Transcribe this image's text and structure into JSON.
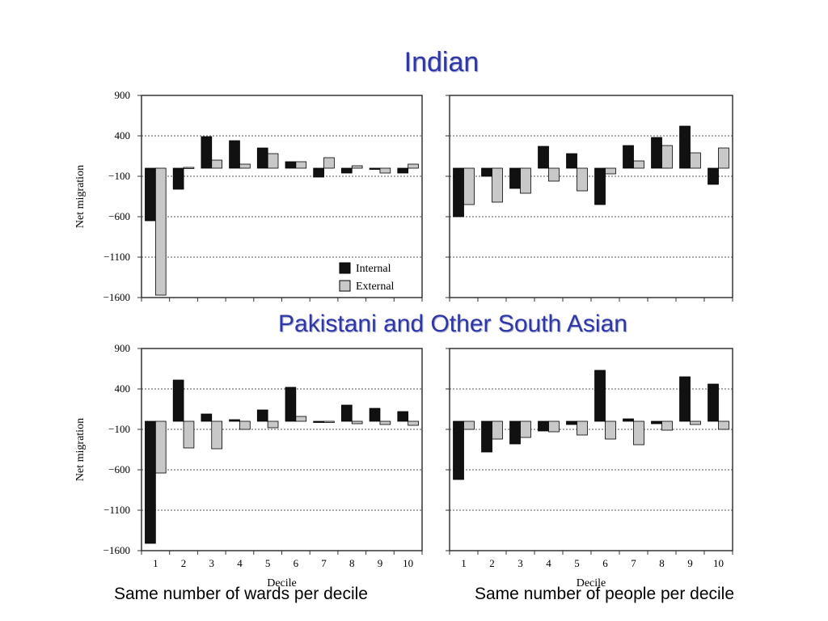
{
  "titles": {
    "top": "Indian",
    "middle": "Pakistani and Other South Asian"
  },
  "captions": {
    "left": "Same number of wards per decile",
    "right": "Same number of people per decile"
  },
  "legend": {
    "internal": "Internal",
    "external": "External"
  },
  "colors": {
    "internal": "#111111",
    "external": "#c8c8c8",
    "title": "#2e36a8"
  },
  "chart_data": [
    {
      "type": "bar",
      "group": "Indian",
      "ylabel": "Net migration",
      "ylim": [
        -1600,
        900
      ],
      "yticks": [
        900,
        400,
        -100,
        -600,
        -1100,
        -1600
      ],
      "categories": [
        "1",
        "2",
        "3",
        "4",
        "5",
        "6",
        "7",
        "8",
        "9",
        "10"
      ],
      "grid": true,
      "legend": "bottom-right",
      "series": [
        {
          "name": "Internal",
          "values": [
            -650,
            -260,
            390,
            340,
            250,
            80,
            -110,
            -60,
            -10,
            -60
          ]
        },
        {
          "name": "External",
          "values": [
            -1570,
            10,
            100,
            50,
            180,
            80,
            130,
            30,
            -60,
            50
          ]
        }
      ]
    },
    {
      "type": "bar",
      "group": "Indian",
      "ylim": [
        -1600,
        900
      ],
      "yticks": [
        900,
        400,
        -100,
        -600,
        -1100,
        -1600
      ],
      "categories": [
        "1",
        "2",
        "3",
        "4",
        "5",
        "6",
        "7",
        "8",
        "9",
        "10"
      ],
      "grid": true,
      "series": [
        {
          "name": "Internal",
          "values": [
            -600,
            -100,
            -250,
            270,
            180,
            -450,
            280,
            380,
            520,
            -200
          ]
        },
        {
          "name": "External",
          "values": [
            -450,
            -420,
            -310,
            -160,
            -280,
            -70,
            90,
            280,
            190,
            250
          ]
        }
      ]
    },
    {
      "type": "bar",
      "group": "Pakistani and Other South Asian",
      "ylabel": "Net migration",
      "xlabel": "Decile",
      "ylim": [
        -1600,
        900
      ],
      "yticks": [
        900,
        400,
        -100,
        -600,
        -1100,
        -1600
      ],
      "categories": [
        "1",
        "2",
        "3",
        "4",
        "5",
        "6",
        "7",
        "8",
        "9",
        "10"
      ],
      "grid": true,
      "series": [
        {
          "name": "Internal",
          "values": [
            -1510,
            510,
            90,
            20,
            140,
            420,
            -10,
            200,
            160,
            120
          ]
        },
        {
          "name": "External",
          "values": [
            -640,
            -330,
            -340,
            -100,
            -80,
            60,
            -10,
            -30,
            -40,
            -50
          ]
        }
      ]
    },
    {
      "type": "bar",
      "group": "Pakistani and Other South Asian",
      "xlabel": "Decile",
      "ylim": [
        -1600,
        900
      ],
      "yticks": [
        900,
        400,
        -100,
        -600,
        -1100,
        -1600
      ],
      "categories": [
        "1",
        "2",
        "3",
        "4",
        "5",
        "6",
        "7",
        "8",
        "9",
        "10"
      ],
      "grid": true,
      "series": [
        {
          "name": "Internal",
          "values": [
            -720,
            -380,
            -280,
            -120,
            -40,
            630,
            30,
            -30,
            550,
            460
          ]
        },
        {
          "name": "External",
          "values": [
            -100,
            -220,
            -200,
            -130,
            -170,
            -220,
            -290,
            -110,
            -40,
            -100
          ]
        }
      ]
    }
  ]
}
